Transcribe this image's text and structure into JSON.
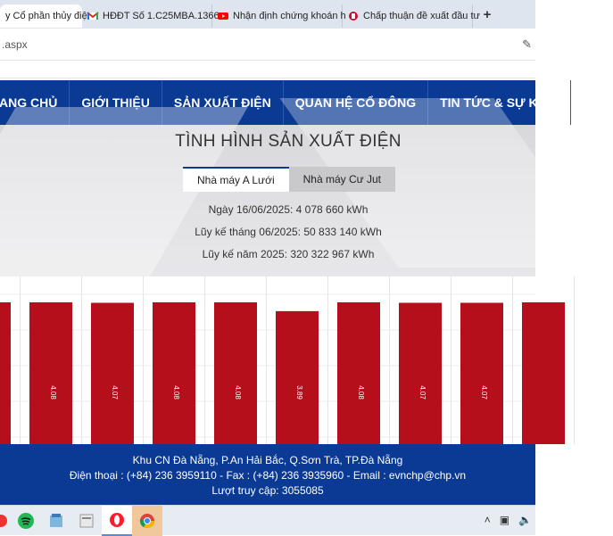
{
  "browser": {
    "tabs": [
      {
        "title": "y Cổ phần thủy điệ",
        "icon": "site-favicon",
        "active": true
      },
      {
        "title": "HĐĐT Số 1.C25MBA.1366",
        "icon": "gmail-icon",
        "active": false
      },
      {
        "title": "Nhận định chứng khoán h",
        "icon": "youtube-icon",
        "active": false
      },
      {
        "title": "Chấp thuận đề xuất đầu tư",
        "icon": "news-favicon",
        "active": false
      }
    ],
    "new_tab_label": "+",
    "address": ".aspx"
  },
  "nav": {
    "items": [
      "ANG CHỦ",
      "GIỚI THIỆU",
      "SẢN XUẤT ĐIỆN",
      "QUAN HỆ CỔ ĐÔNG",
      "TIN TỨC & SỰ KIỆN"
    ]
  },
  "production": {
    "title": "TÌNH HÌNH SẢN XUẤT ĐIỆN",
    "plant_tabs": [
      "Nhà máy A Lưới",
      "Nhà máy Cư Jut"
    ],
    "active_plant": "Nhà máy A Lưới",
    "daily": "Ngày 16/06/2025: 4 078 660 kWh",
    "monthly": "Lũy kế tháng 06/2025: 50 833 140 kWh",
    "yearly": "Lũy kế năm 2025: 320 322 967 kWh"
  },
  "chart_data": {
    "type": "bar",
    "values": [
      4.08,
      4.08,
      4.07,
      4.08,
      4.08,
      3.89,
      4.08,
      4.07,
      4.07,
      4.08
    ],
    "data_labels": [
      "",
      "4.08",
      "4.07",
      "4.08",
      "4.08",
      "3.89",
      "4.08",
      "4.07",
      "4.07",
      ""
    ],
    "color": "#b50f1c",
    "grid": true
  },
  "footer": {
    "address": "Khu CN Đà Nẵng, P.An Hải Bắc, Q.Sơn Trà, TP.Đà Nẵng",
    "contact": "Điện thoại : (+84) 236 3959110 - Fax : (+84) 236 3935960 - Email : evnchp@chp.vn",
    "visits": "Lượt truy cập: 3055085"
  },
  "taskbar": {
    "apps": [
      "spotify-icon",
      "notepad-icon",
      "files-icon",
      "opera-icon",
      "chrome-icon"
    ]
  },
  "colors": {
    "brand_blue": "#0b3a94",
    "bar_red": "#b50f1c"
  }
}
